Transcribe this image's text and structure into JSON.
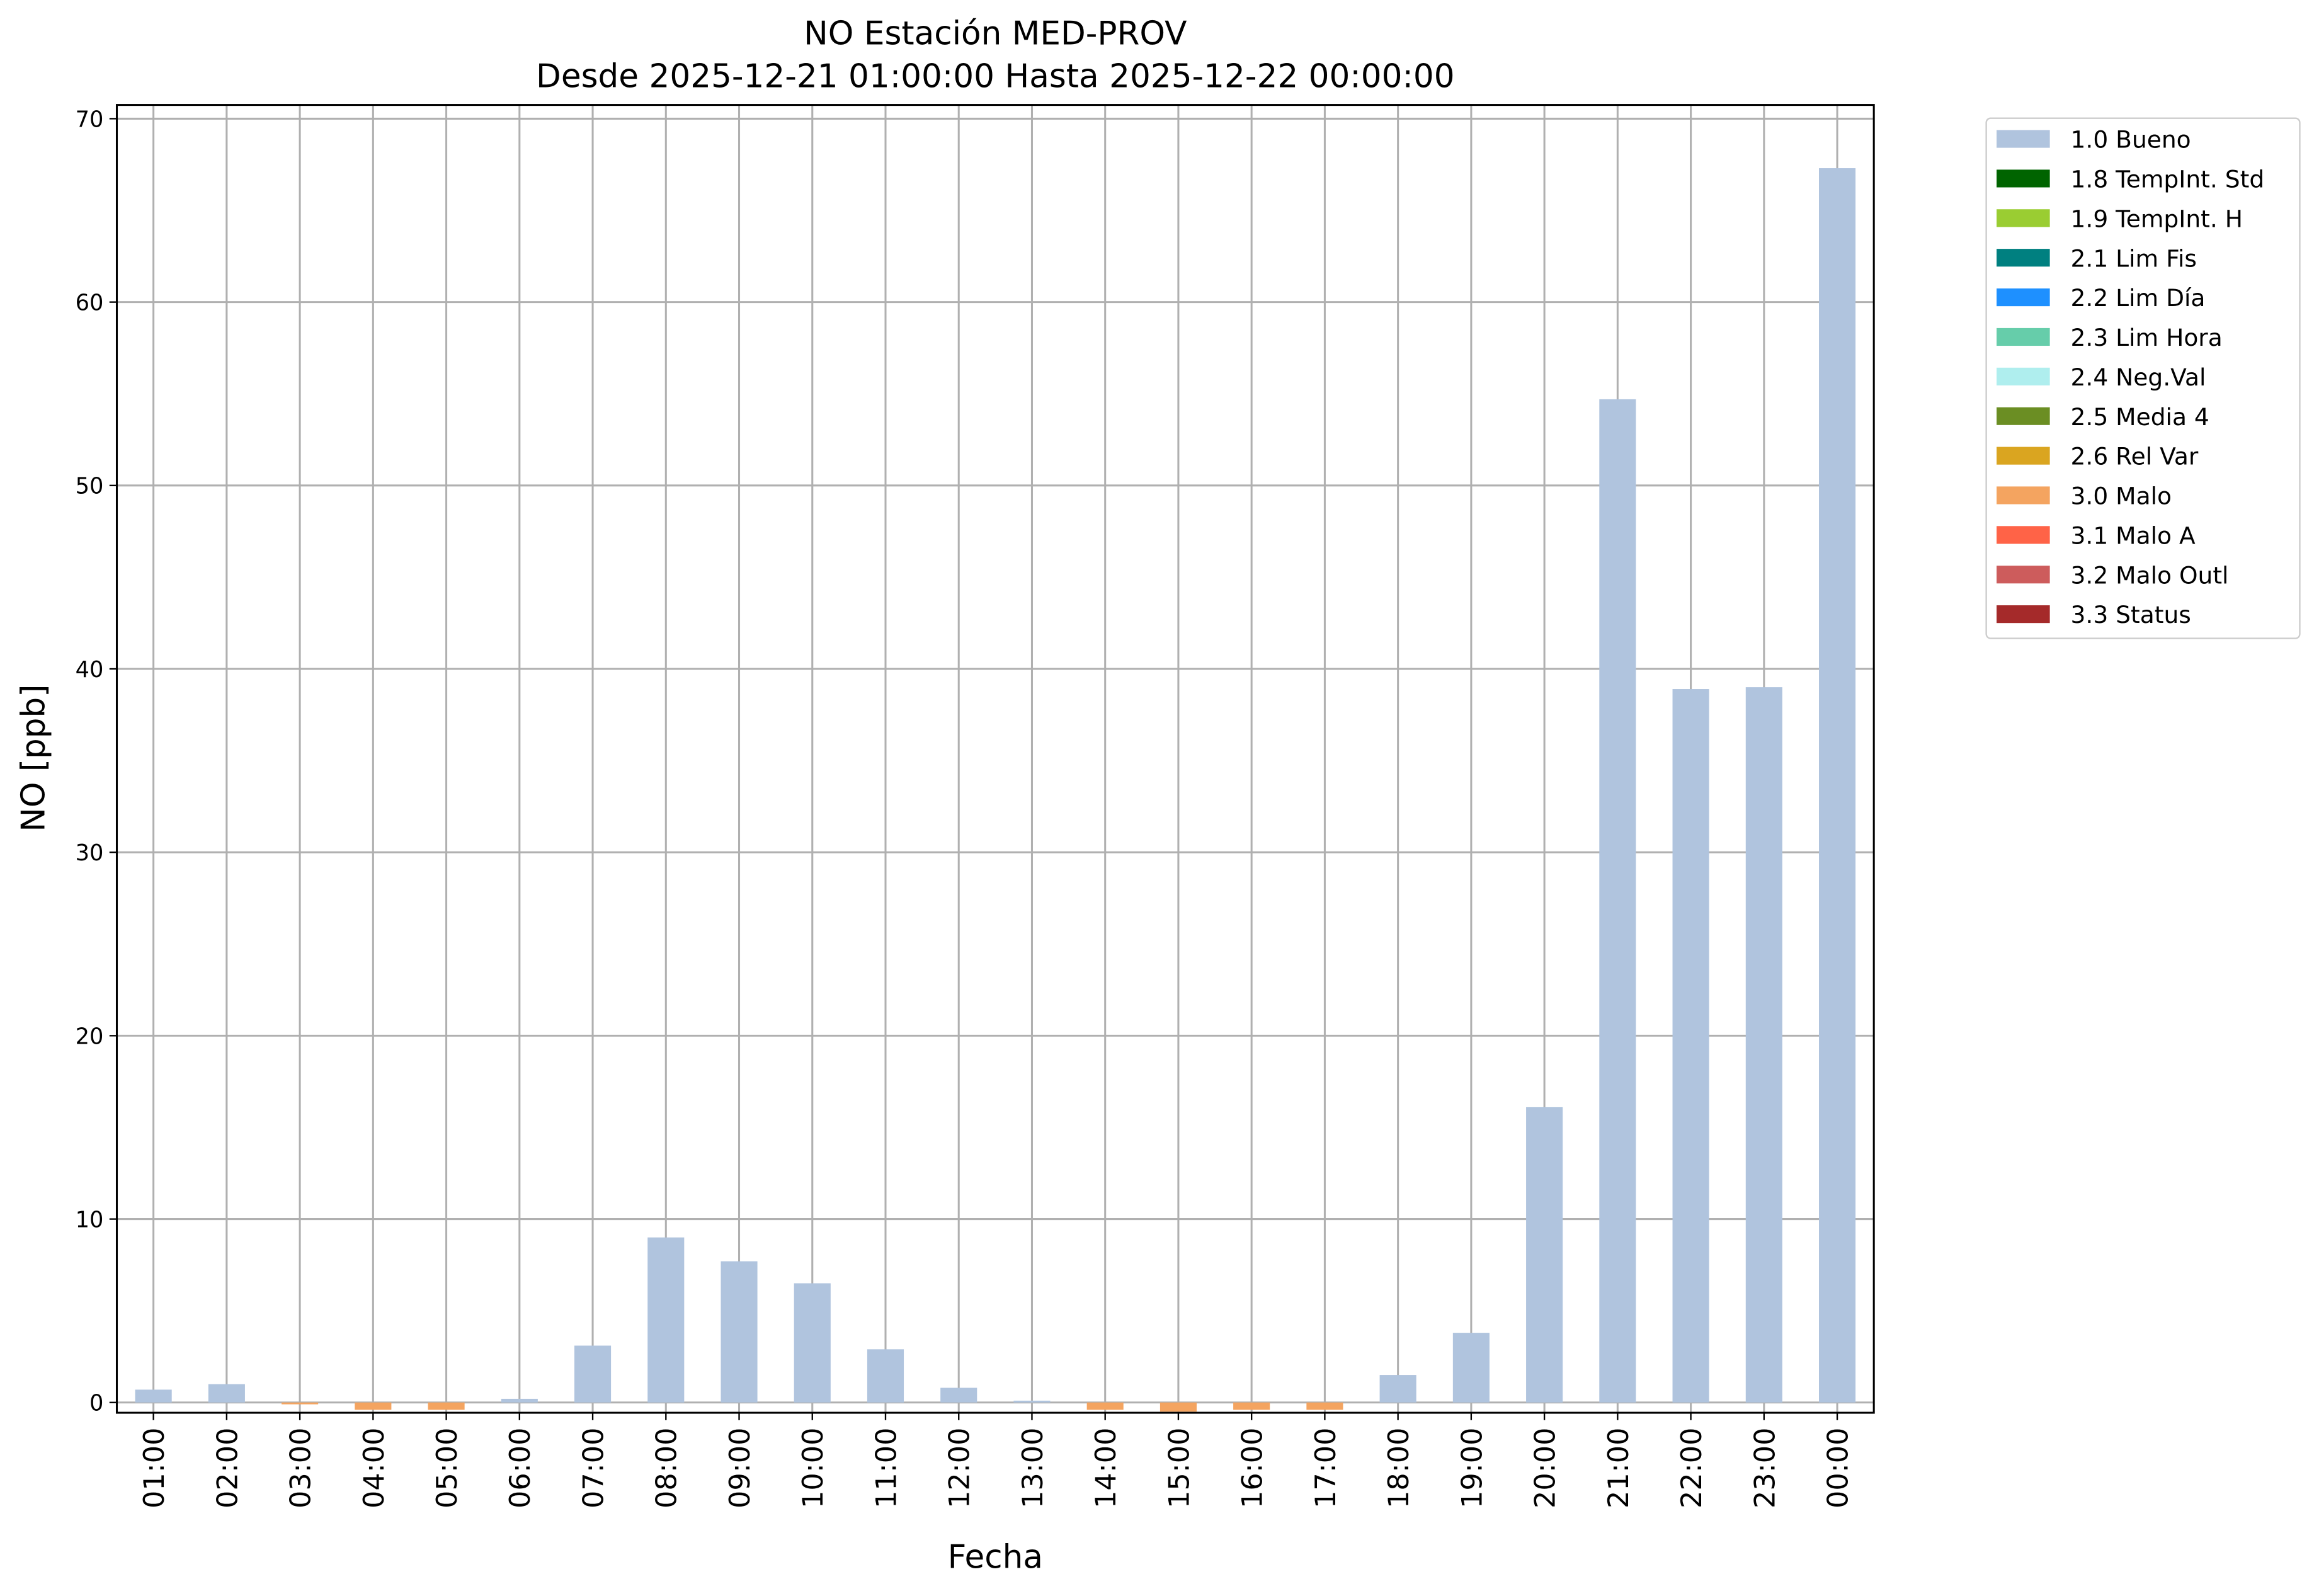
{
  "chart_data": {
    "type": "bar",
    "stacked": true,
    "title": "NO Estación MED-PROV",
    "subtitle": "Desde 2025-12-21 01:00:00 Hasta 2025-12-22 00:00:00",
    "x_label": "Fecha",
    "y_label": "NO [ppb]",
    "categories": [
      "01:00",
      "02:00",
      "03:00",
      "04:00",
      "05:00",
      "06:00",
      "07:00",
      "08:00",
      "09:00",
      "10:00",
      "11:00",
      "12:00",
      "13:00",
      "14:00",
      "15:00",
      "16:00",
      "17:00",
      "18:00",
      "19:00",
      "20:00",
      "21:00",
      "22:00",
      "23:00",
      "00:00"
    ],
    "series": [
      {
        "name": "1.0 Bueno",
        "color": "#b0c4de",
        "values": [
          0.7,
          1.0,
          null,
          null,
          null,
          0.2,
          3.1,
          9.0,
          7.7,
          6.5,
          2.9,
          0.8,
          0.1,
          null,
          null,
          null,
          null,
          1.5,
          3.8,
          16.1,
          54.7,
          38.9,
          39.0,
          67.3
        ]
      },
      {
        "name": "1.8 TempInt. Std",
        "color": "#006400",
        "values": [
          null,
          null,
          null,
          null,
          null,
          null,
          null,
          null,
          null,
          null,
          null,
          null,
          null,
          null,
          null,
          null,
          null,
          null,
          null,
          null,
          null,
          null,
          null,
          null
        ]
      },
      {
        "name": "1.9 TempInt. H",
        "color": "#9acd32",
        "values": [
          null,
          null,
          null,
          null,
          null,
          null,
          null,
          null,
          null,
          null,
          null,
          null,
          null,
          null,
          null,
          null,
          null,
          null,
          null,
          null,
          null,
          null,
          null,
          null
        ]
      },
      {
        "name": "2.1 Lim Fis",
        "color": "#008080",
        "values": [
          null,
          null,
          null,
          null,
          null,
          null,
          null,
          null,
          null,
          null,
          null,
          null,
          null,
          null,
          null,
          null,
          null,
          null,
          null,
          null,
          null,
          null,
          null,
          null
        ]
      },
      {
        "name": "2.2 Lim Día",
        "color": "#1e90ff",
        "values": [
          null,
          null,
          null,
          null,
          null,
          null,
          null,
          null,
          null,
          null,
          null,
          null,
          null,
          null,
          null,
          null,
          null,
          null,
          null,
          null,
          null,
          null,
          null,
          null
        ]
      },
      {
        "name": "2.3 Lim Hora",
        "color": "#66cdaa",
        "values": [
          null,
          null,
          null,
          null,
          null,
          null,
          null,
          null,
          null,
          null,
          null,
          null,
          null,
          null,
          null,
          null,
          null,
          null,
          null,
          null,
          null,
          null,
          null,
          null
        ]
      },
      {
        "name": "2.4 Neg.Val",
        "color": "#afeeee",
        "values": [
          null,
          null,
          null,
          null,
          null,
          null,
          null,
          null,
          null,
          null,
          null,
          null,
          null,
          null,
          null,
          null,
          null,
          null,
          null,
          null,
          null,
          null,
          null,
          null
        ]
      },
      {
        "name": "2.5 Media 4",
        "color": "#6b8e23",
        "values": [
          null,
          null,
          null,
          null,
          null,
          null,
          null,
          null,
          null,
          null,
          null,
          null,
          null,
          null,
          null,
          null,
          null,
          null,
          null,
          null,
          null,
          null,
          null,
          null
        ]
      },
      {
        "name": "2.6 Rel Var",
        "color": "#daa520",
        "values": [
          null,
          null,
          null,
          null,
          null,
          null,
          null,
          null,
          null,
          null,
          null,
          null,
          null,
          null,
          null,
          null,
          null,
          null,
          null,
          null,
          null,
          null,
          null,
          null
        ]
      },
      {
        "name": "3.0 Malo",
        "color": "#f4a460",
        "values": [
          null,
          null,
          -0.1,
          -0.4,
          -0.4,
          null,
          null,
          null,
          null,
          null,
          null,
          null,
          null,
          -0.4,
          -0.5,
          -0.4,
          -0.4,
          null,
          null,
          null,
          null,
          null,
          null,
          null
        ]
      },
      {
        "name": "3.1 Malo A",
        "color": "#ff6347",
        "values": [
          null,
          null,
          null,
          null,
          null,
          null,
          null,
          null,
          null,
          null,
          null,
          null,
          null,
          null,
          null,
          null,
          null,
          null,
          null,
          null,
          null,
          null,
          null,
          null
        ]
      },
      {
        "name": "3.2 Malo Outl",
        "color": "#cd5c5c",
        "values": [
          null,
          null,
          null,
          null,
          null,
          null,
          null,
          null,
          null,
          null,
          null,
          null,
          null,
          null,
          null,
          null,
          null,
          null,
          null,
          null,
          null,
          null,
          null,
          null
        ]
      },
      {
        "name": "3.3 Status",
        "color": "#a52a2a",
        "values": [
          null,
          null,
          null,
          null,
          null,
          null,
          null,
          null,
          null,
          null,
          null,
          null,
          null,
          null,
          null,
          null,
          null,
          null,
          null,
          null,
          null,
          null,
          null,
          null
        ]
      }
    ],
    "ylim": [
      -0.56,
      70.75
    ],
    "yticks": [
      0,
      10,
      20,
      30,
      40,
      50,
      60,
      70
    ],
    "grid": true,
    "legend": "outside right"
  }
}
